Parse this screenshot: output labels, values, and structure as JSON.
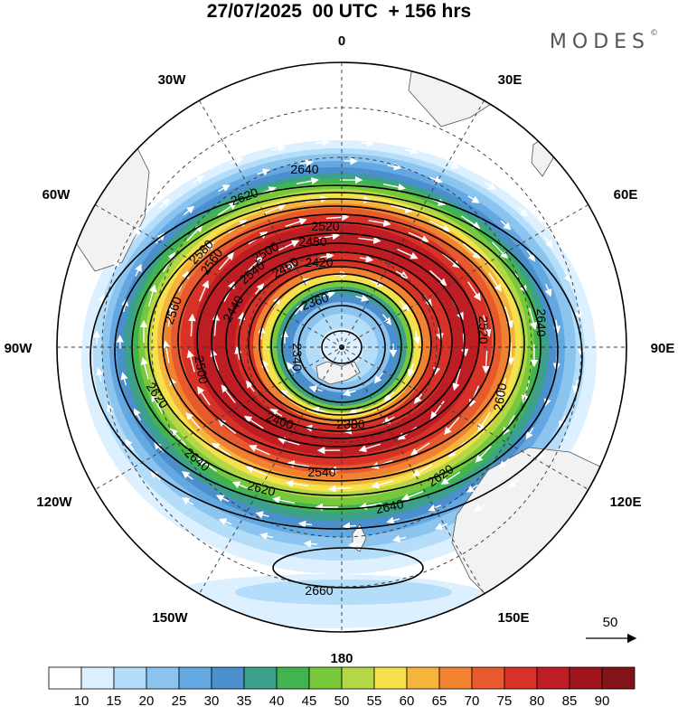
{
  "header": {
    "title": "27/07/2025  00 UTC  + 156 hrs",
    "brand": "MODES",
    "brand_mark": "©"
  },
  "map": {
    "projection": "south-polar-stereographic",
    "longitude_labels": [
      "0",
      "30E",
      "60E",
      "90E",
      "120E",
      "150E",
      "180",
      "150W",
      "120W",
      "90W",
      "60W",
      "30W"
    ],
    "contour_labels": [
      "2640",
      "2620",
      "2580",
      "2560",
      "2540",
      "2520",
      "2500",
      "2480",
      "2460",
      "2440",
      "2420",
      "2400",
      "2380",
      "2360",
      "2340",
      "2620",
      "2600",
      "2640",
      "2620",
      "2640",
      "2660",
      "2640",
      "2620",
      "2560",
      "2540",
      "2520",
      "2500"
    ],
    "reference_vector_label": "50"
  },
  "colorbar": {
    "ticks": [
      "10",
      "15",
      "20",
      "25",
      "30",
      "35",
      "40",
      "45",
      "50",
      "55",
      "60",
      "65",
      "70",
      "75",
      "80",
      "85",
      "90"
    ],
    "colors": [
      "#ffffff",
      "#dcf0ff",
      "#b4ddfa",
      "#8cc4f0",
      "#64a8e1",
      "#4b8fcd",
      "#3ca08c",
      "#41b450",
      "#78c83c",
      "#b4d746",
      "#f5e14b",
      "#f5b43c",
      "#f08232",
      "#e65a2d",
      "#d73228",
      "#be1e23",
      "#a0141e",
      "#821419"
    ]
  }
}
